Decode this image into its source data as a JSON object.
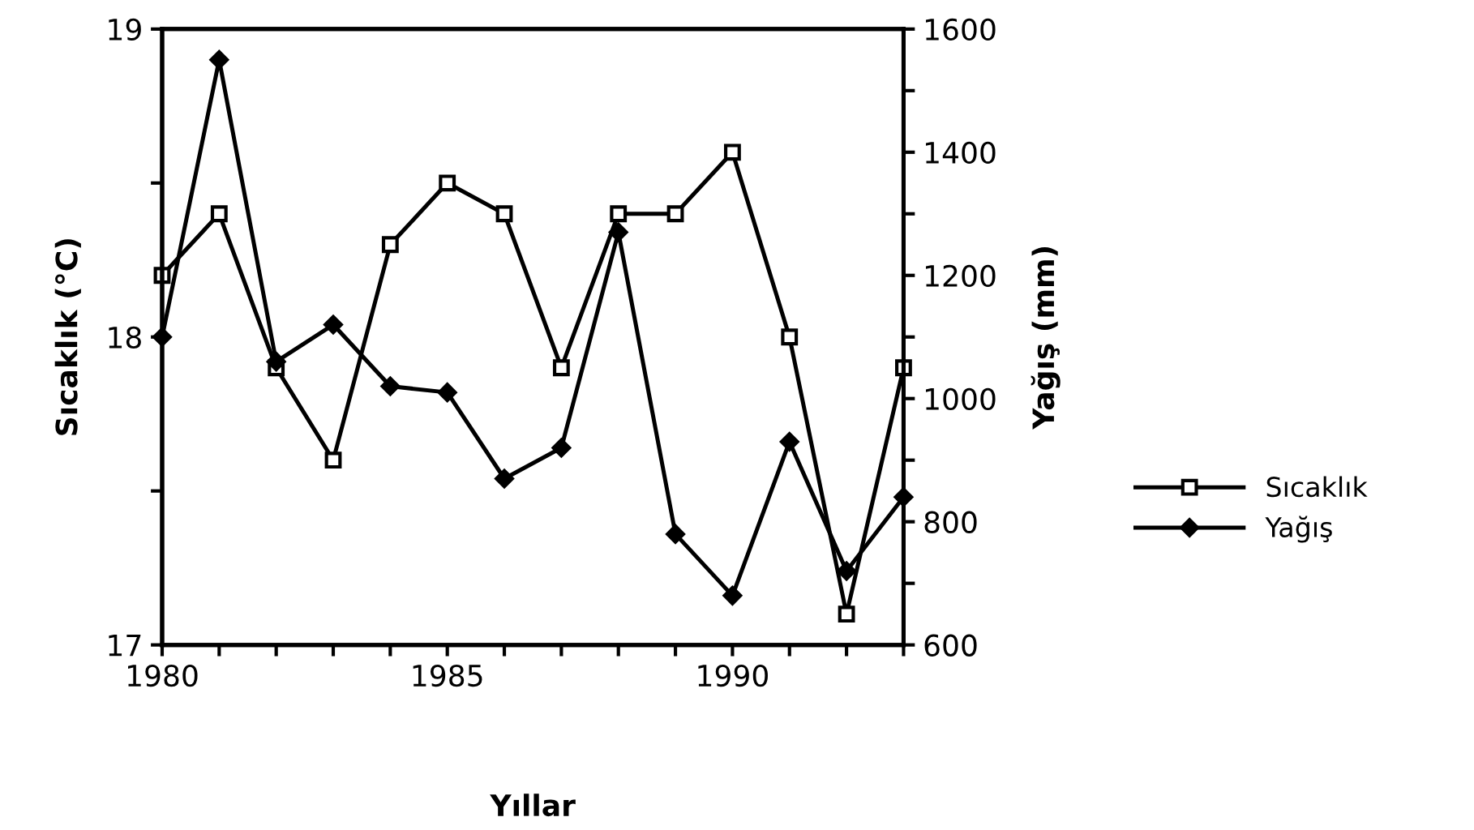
{
  "chart_data": {
    "type": "line",
    "xlabel": "Yıllar",
    "ylabel": "Sıcaklık (°C)",
    "y2label": "Yağış (mm)",
    "x": [
      1980,
      1981,
      1982,
      1983,
      1984,
      1985,
      1986,
      1987,
      1988,
      1989,
      1990,
      1991,
      1992,
      1993
    ],
    "series": [
      {
        "name": "Sıcaklık",
        "color": "#000000",
        "marker": "square",
        "values": [
          18.2,
          18.4,
          17.9,
          17.6,
          18.3,
          18.5,
          18.4,
          17.9,
          18.4,
          18.4,
          18.6,
          18.0,
          17.1,
          17.9
        ]
      },
      {
        "name": "Yağış",
        "color": "#000000",
        "marker": "diamond",
        "axis": "y2",
        "values": [
          1100,
          1550,
          1060,
          1120,
          1020,
          1010,
          870,
          920,
          1270,
          780,
          680,
          930,
          720,
          840
        ]
      }
    ],
    "xlim": [
      1980,
      1993
    ],
    "xticks": [
      1980,
      {
        "value": 1981,
        "label": null
      },
      {
        "value": 1982,
        "label": null
      },
      {
        "value": 1983,
        "label": null
      },
      {
        "value": 1984,
        "label": null
      },
      1985,
      {
        "value": 1986,
        "label": null
      },
      {
        "value": 1987,
        "label": null
      },
      {
        "value": 1988,
        "label": null
      },
      {
        "value": 1989,
        "label": null
      },
      1990,
      {
        "value": 1991,
        "label": null
      },
      {
        "value": 1992,
        "label": null
      },
      {
        "value": 1993,
        "label": null
      }
    ],
    "ylim": [
      17,
      19
    ],
    "yticks": [
      17,
      {
        "value": 17.5,
        "label": null
      },
      18,
      {
        "value": 18.5,
        "label": null
      },
      19
    ],
    "y2lim": [
      600,
      1600
    ],
    "y2ticks": [
      600,
      {
        "value": 700,
        "label": null
      },
      800,
      {
        "value": 900,
        "label": null
      },
      1000,
      {
        "value": 1100,
        "label": null
      },
      1200,
      {
        "value": 1300,
        "label": null
      },
      1400,
      {
        "value": 1500,
        "label": null
      },
      1600
    ],
    "legend": "right",
    "grid": false,
    "line_style": "solid"
  }
}
